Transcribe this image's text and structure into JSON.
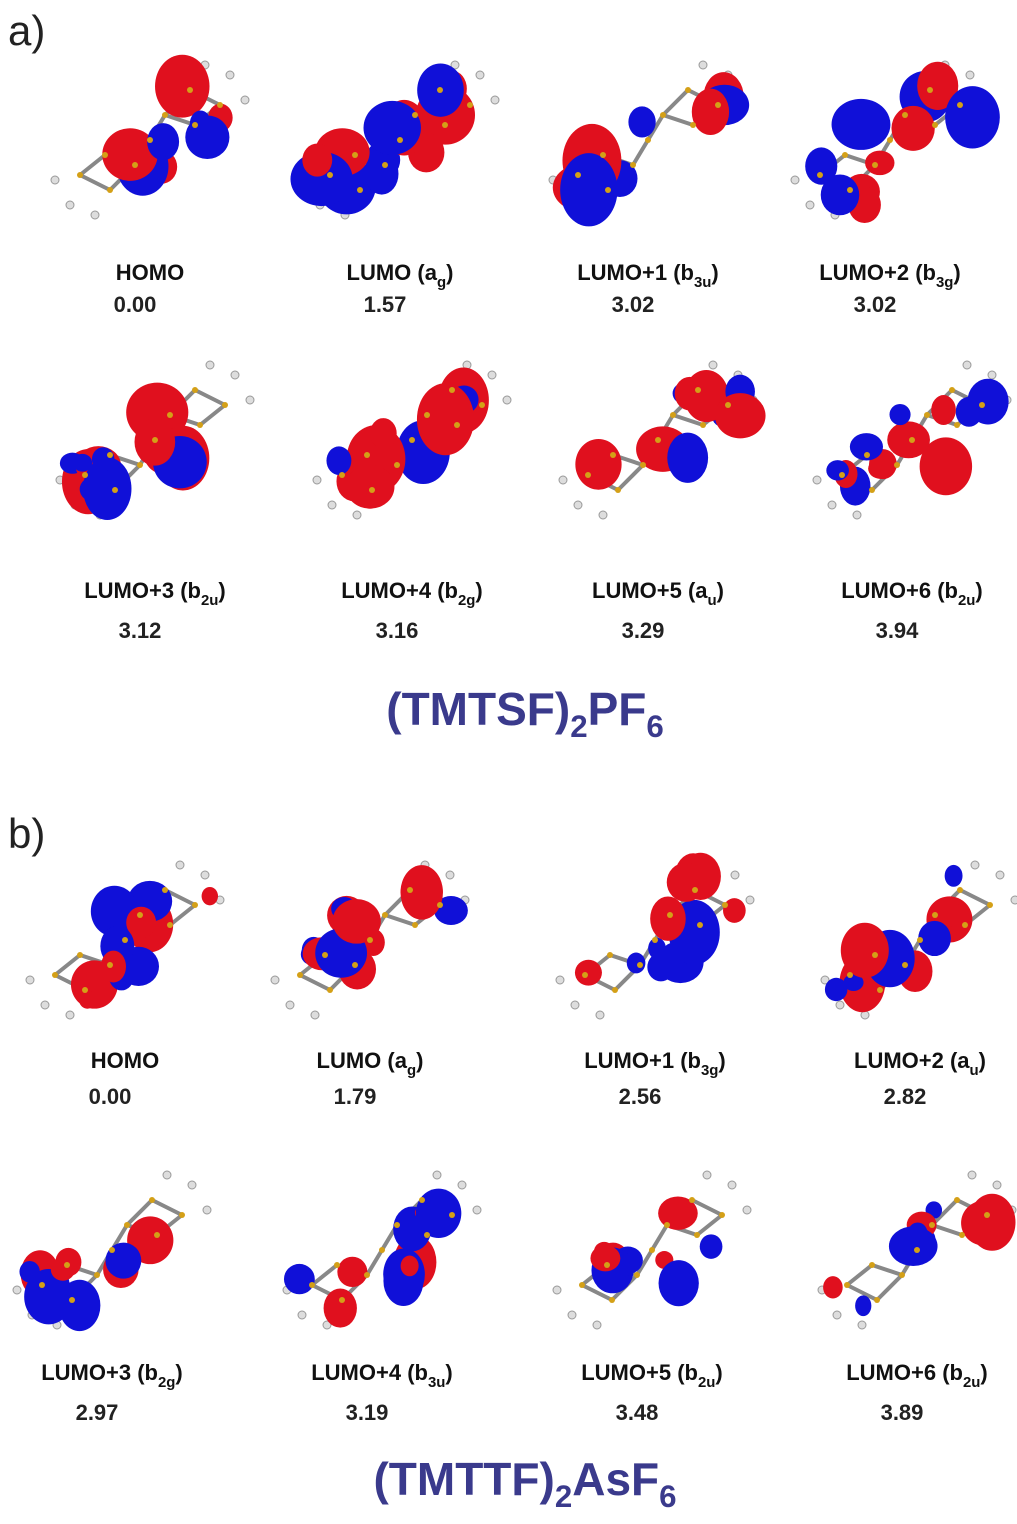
{
  "panels": [
    {
      "label": "a)",
      "title": [
        "(TMTSF)",
        "2",
        "PF",
        "6"
      ],
      "orbitals": [
        {
          "label": [
            "HOMO"
          ],
          "energy": "0.00"
        },
        {
          "label": [
            "LUMO  (a",
            "g",
            ")"
          ],
          "energy": "1.57"
        },
        {
          "label": [
            "LUMO+1  (b",
            "3u",
            ")"
          ],
          "energy": "3.02"
        },
        {
          "label": [
            "LUMO+2 (b",
            "3g",
            ")"
          ],
          "energy": "3.02"
        },
        {
          "label": [
            "LUMO+3  (b",
            "2u",
            ")"
          ],
          "energy": "3.12"
        },
        {
          "label": [
            "LUMO+4  (b",
            "2g",
            ")"
          ],
          "energy": "3.16"
        },
        {
          "label": [
            "LUMO+5  (a",
            "u",
            ")"
          ],
          "energy": "3.29"
        },
        {
          "label": [
            "LUMO+6   (b",
            "2u",
            ")"
          ],
          "energy": "3.94"
        }
      ]
    },
    {
      "label": "b)",
      "title": [
        "(TMTTF)",
        "2",
        "AsF",
        "6"
      ],
      "orbitals": [
        {
          "label": [
            "HOMO"
          ],
          "energy": "0.00"
        },
        {
          "label": [
            "LUMO  (a",
            "g",
            ")"
          ],
          "energy": "1.79"
        },
        {
          "label": [
            "LUMO+1 (b",
            "3g",
            ")"
          ],
          "energy": "2.56"
        },
        {
          "label": [
            "LUMO+2 (a",
            "u",
            ")"
          ],
          "energy": "2.82"
        },
        {
          "label": [
            "LUMO+3 (b",
            "2g",
            ")"
          ],
          "energy": "2.97"
        },
        {
          "label": [
            "LUMO+4 (b",
            "3u",
            ")"
          ],
          "energy": "3.19"
        },
        {
          "label": [
            "LUMO+5 (b",
            "2u",
            ")"
          ],
          "energy": "3.48"
        },
        {
          "label": [
            "LUMO+6 (b",
            "2u",
            ")"
          ],
          "energy": "3.89"
        }
      ]
    }
  ]
}
